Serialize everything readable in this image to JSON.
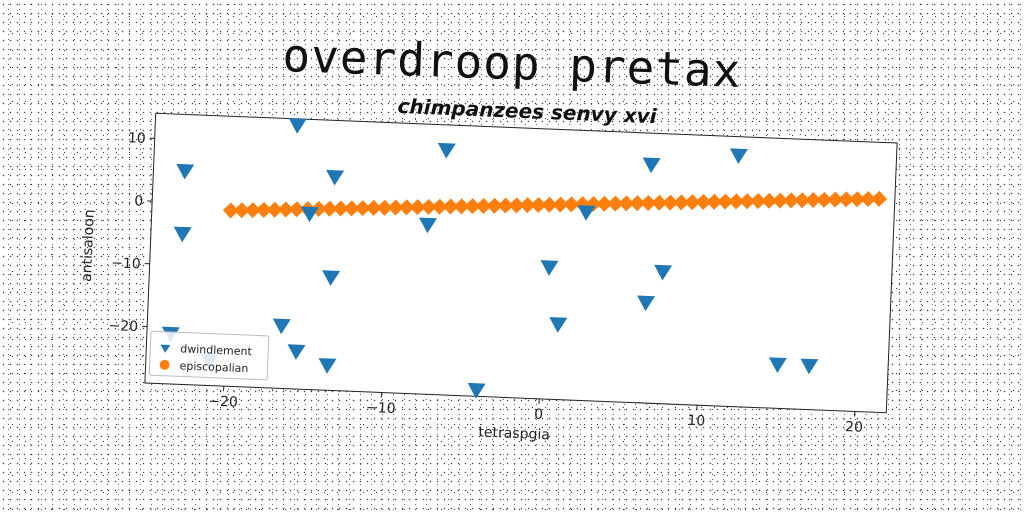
{
  "title": "overdroop pretax",
  "chart_data": {
    "type": "scatter",
    "subtitle": "chimpanzees senvy xvi",
    "xlabel": "tetraspgia",
    "ylabel": "antisaloon",
    "xlim": [
      -25,
      22
    ],
    "ylim": [
      -29,
      14
    ],
    "xticks": [
      -20,
      -10,
      0,
      10,
      20
    ],
    "yticks": [
      -20,
      -10,
      0,
      10
    ],
    "grid": false,
    "legend_position": "lower-left",
    "series": [
      {
        "name": "dwindlement",
        "marker": "triangle-down",
        "color": "#1f77b4",
        "points": [
          [
            -23,
            5
          ],
          [
            -23,
            -5
          ],
          [
            -23.5,
            -21
          ],
          [
            -21,
            -25
          ],
          [
            -16.5,
            -19
          ],
          [
            -16,
            13
          ],
          [
            -15.5,
            -23
          ],
          [
            -13.5,
            -11
          ],
          [
            -13.5,
            5
          ],
          [
            -13.5,
            -25
          ],
          [
            -7.5,
            -2
          ],
          [
            -6.5,
            10
          ],
          [
            -4,
            -28
          ],
          [
            0.3,
            -8
          ],
          [
            1,
            -17
          ],
          [
            2.5,
            1
          ],
          [
            6.5,
            9
          ],
          [
            6.5,
            -13
          ],
          [
            7.5,
            -8
          ],
          [
            12,
            11
          ],
          [
            15,
            -22
          ],
          [
            17,
            -22
          ],
          [
            -15,
            -1
          ]
        ]
      },
      {
        "name": "episcopalian",
        "marker": "diamond",
        "color": "#ff7f0e",
        "x_start": -20,
        "x_end": 21,
        "y_start": -1,
        "y_end": 5,
        "count": 60
      }
    ]
  }
}
